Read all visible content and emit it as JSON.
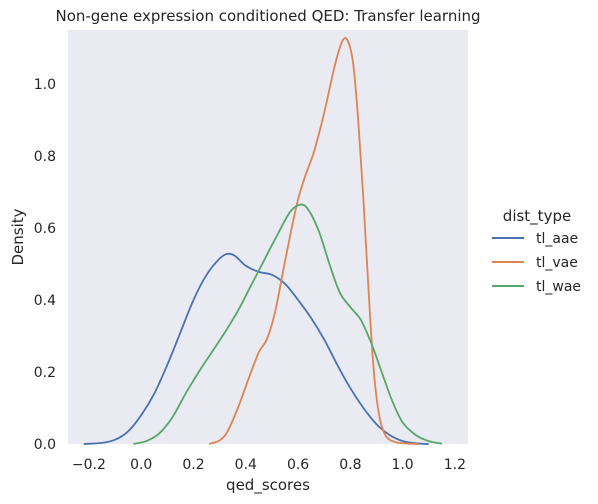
{
  "chart_data": {
    "type": "line",
    "title": "Non-gene expression conditioned  QED: Transfer learning",
    "xlabel": "qed_scores",
    "ylabel": "Density",
    "xlim": [
      -0.28,
      1.25
    ],
    "ylim": [
      0,
      1.15
    ],
    "xticks": [
      "−0.2",
      "0.0",
      "0.2",
      "0.4",
      "0.6",
      "0.8",
      "1.0",
      "1.2"
    ],
    "xtick_values": [
      -0.2,
      0.0,
      0.2,
      0.4,
      0.6,
      0.8,
      1.0,
      1.2
    ],
    "yticks": [
      "0.0",
      "0.2",
      "0.4",
      "0.6",
      "0.8",
      "1.0"
    ],
    "ytick_values": [
      0.0,
      0.2,
      0.4,
      0.6,
      0.8,
      1.0
    ],
    "grid": false,
    "background": "#eaeaf2",
    "legend": {
      "title": "dist_type",
      "placement": "right-outside"
    },
    "series": [
      {
        "name": "tl_aae",
        "color": "#4c72b0",
        "x": [
          -0.22,
          -0.15,
          -0.1,
          -0.05,
          0.0,
          0.05,
          0.1,
          0.15,
          0.2,
          0.25,
          0.3,
          0.33,
          0.36,
          0.4,
          0.45,
          0.5,
          0.55,
          0.6,
          0.65,
          0.7,
          0.75,
          0.8,
          0.85,
          0.9,
          0.95,
          1.0,
          1.05,
          1.1
        ],
        "y": [
          0.0,
          0.003,
          0.012,
          0.035,
          0.08,
          0.14,
          0.22,
          0.31,
          0.4,
          0.47,
          0.515,
          0.528,
          0.522,
          0.495,
          0.478,
          0.47,
          0.445,
          0.4,
          0.35,
          0.29,
          0.22,
          0.155,
          0.1,
          0.055,
          0.025,
          0.008,
          0.002,
          0.0
        ]
      },
      {
        "name": "tl_vae",
        "color": "#dd8452",
        "x": [
          0.26,
          0.3,
          0.33,
          0.37,
          0.41,
          0.45,
          0.48,
          0.51,
          0.54,
          0.57,
          0.6,
          0.63,
          0.66,
          0.7,
          0.74,
          0.77,
          0.79,
          0.81,
          0.83,
          0.85,
          0.87,
          0.89,
          0.91,
          0.93,
          0.95,
          0.98,
          1.02,
          1.06
        ],
        "y": [
          0.0,
          0.01,
          0.035,
          0.1,
          0.18,
          0.255,
          0.29,
          0.36,
          0.47,
          0.58,
          0.68,
          0.75,
          0.81,
          0.92,
          1.05,
          1.12,
          1.12,
          1.06,
          0.9,
          0.68,
          0.42,
          0.2,
          0.08,
          0.03,
          0.012,
          0.004,
          0.001,
          0.0
        ]
      },
      {
        "name": "tl_wae",
        "color": "#55a868",
        "x": [
          -0.03,
          0.02,
          0.07,
          0.12,
          0.17,
          0.22,
          0.27,
          0.32,
          0.37,
          0.42,
          0.47,
          0.52,
          0.57,
          0.61,
          0.64,
          0.68,
          0.72,
          0.76,
          0.8,
          0.84,
          0.88,
          0.92,
          0.96,
          1.0,
          1.05,
          1.1,
          1.15
        ],
        "y": [
          0.0,
          0.008,
          0.03,
          0.075,
          0.14,
          0.2,
          0.255,
          0.31,
          0.37,
          0.44,
          0.51,
          0.58,
          0.645,
          0.665,
          0.65,
          0.59,
          0.5,
          0.42,
          0.38,
          0.345,
          0.28,
          0.2,
          0.12,
          0.06,
          0.025,
          0.008,
          0.001
        ]
      }
    ]
  }
}
